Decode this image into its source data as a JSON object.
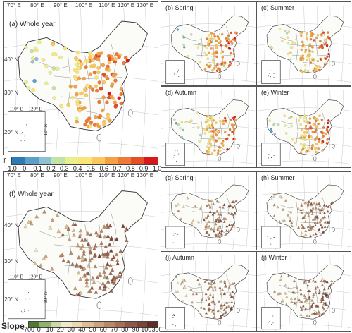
{
  "panels": {
    "a": {
      "label": "(a) Whole year"
    },
    "b": {
      "label": "(b) Spring"
    },
    "c": {
      "label": "(c) Summer"
    },
    "d": {
      "label": "(d) Autumn"
    },
    "e": {
      "label": "(e) Winter"
    },
    "f": {
      "label": "(f) Whole year"
    },
    "g": {
      "label": "(g) Spring"
    },
    "h": {
      "label": "(h) Summer"
    },
    "i": {
      "label": "(i) Autumn"
    },
    "j": {
      "label": "(j) Winter"
    }
  },
  "axis_labels": {
    "top_big": [
      "70° E",
      "80° E",
      "90° E",
      "100° E",
      "110° E",
      "120° E",
      "130° E"
    ],
    "top_small": [
      "70° E",
      "80° E",
      "90° E",
      "100° E",
      "110° E",
      "120° E",
      "130° E"
    ],
    "left": [
      "40° N",
      "30° N",
      "20° N"
    ],
    "inset_top": [
      "110° E",
      "120° E"
    ],
    "inset_side": "10° N"
  },
  "colorbar_r": {
    "symbol": "r",
    "ticks": [
      "-1.0",
      "0",
      "0.1",
      "0.2",
      "0.3",
      "0.4",
      "0.5",
      "0.6",
      "0.7",
      "0.8",
      "0.9",
      "1.0"
    ],
    "colors": [
      "#2c7bb6",
      "#5aa0c8",
      "#8cc2d4",
      "#c2e2a8",
      "#e8f08e",
      "#fbe57a",
      "#fbc85e",
      "#f6a046",
      "#ef7a36",
      "#e64e2a",
      "#d7191c"
    ]
  },
  "colorbar_slope": {
    "symbol": "Slope",
    "ticks": [
      "-700",
      "0",
      "10",
      "20",
      "30",
      "40",
      "50",
      "60",
      "70",
      "80",
      "90",
      "100",
      "300"
    ],
    "colors": [
      "#4d7a2e",
      "#8fb36a",
      "#c9dca6",
      "#efe9c9",
      "#ead8b0",
      "#dbbf93",
      "#cca27a",
      "#bb8866",
      "#a66f57",
      "#8f5848",
      "#7a4438",
      "#5e2e24"
    ]
  }
}
